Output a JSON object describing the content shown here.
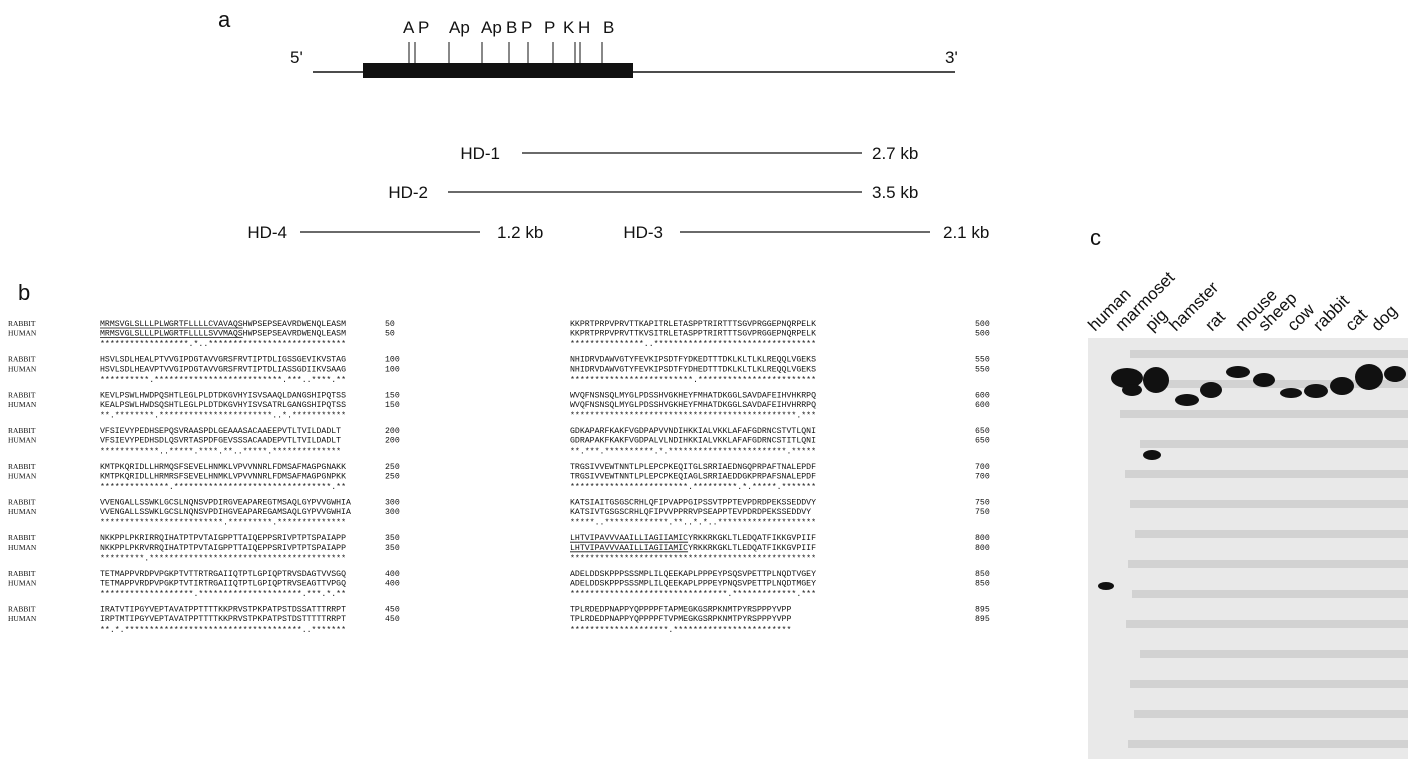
{
  "panel_a": {
    "label": "a",
    "five_prime": "5'",
    "three_prime": "3'",
    "sites": [
      "A",
      "P",
      "Ap",
      "Ap",
      "B",
      "P",
      "P",
      "K",
      "H",
      "B"
    ],
    "clones": [
      {
        "name": "HD-1",
        "size": "2.7 kb"
      },
      {
        "name": "HD-2",
        "size": "3.5 kb"
      },
      {
        "name": "HD-4",
        "size": "1.2 kb"
      },
      {
        "name": "HD-3",
        "size": "2.1 kb"
      }
    ]
  },
  "panel_b": {
    "label": "b",
    "species": [
      "RABBIT",
      "HUMAN"
    ],
    "left_blocks": [
      {
        "rabbit": "MRMSVGLSLLLPLWGRTFLLLLCVAVAQSHWPSEPSEAVRDWENQLEASM",
        "human": "MRMSVGLSLLLPLWGRTFLLLLSVVMAQSHWPSEPSEAVRDWENQLEASM",
        "conservation": "******************.*..****************************",
        "end": 50,
        "underline": 29
      },
      {
        "rabbit": "HSVLSDLHEALPTVVGIPDGTAVVGRSFRVTIPTDLIGSSGEVIKVSTAG",
        "human": "HSVLSDLHEAVPTVVGIPDGTAVVGRSFRVTIPTDLIASSGDIIKVSAAG",
        "conservation": "**********.**************************.***..****.**",
        "end": 100
      },
      {
        "rabbit": "KEVLPSWLHWDPQSHTLEGLPLDTDKGVHYISVSAAQLDANGSHIPQTSS",
        "human": "KEALPSWLHWDSQSHTLEGLPLDTDKGVHYISVSATRLGANGSHIPQTSS",
        "conservation": "**.********.***********************..*.***********",
        "end": 150
      },
      {
        "rabbit": "VFSIEVYPEDHSEPQSVRAASPDLGEAAASACAAEEPVTLTVILDADLT",
        "human": "VFSIEVYPEDHSDLQSVRTASPDFGEVSSSACAADEPVTLTVILDADLT",
        "conservation": "************..*****.****.**..*****.**************",
        "end": 200
      },
      {
        "rabbit": "KMTPKQRIDLLHRMQSFSEVELHNMKLVPVVNNRLFDMSAFMAGPGNAKK",
        "human": "KMTPKQRIDLLHRMRSFSEVELHNMKLVPVVNNRLFDMSAFMAGPGNPKK",
        "conservation": "**************.********************************.**",
        "end": 250
      },
      {
        "rabbit": "VVENGALLSSWKLGCSLNQNSVPDIRGVEAPAREGTMSAQLGYPVVGWHIA",
        "human": "VVENGALLSSWKLGCSLNQNSVPDIHGVEAPAREGAMSAQLGYPVVGWHIA",
        "conservation": "*************************.*********.**************",
        "end": 300
      },
      {
        "rabbit": "NKKPPLPKRIRRQIHATPTPVTAIGPPTTAIQEPPSRIVPTPTSPAIAPP",
        "human": "NKKPPLPKRVRRQIHATPTPVTAIGPPTTAIQEPPSRIVPTPTSPAIAPP",
        "conservation": "*********.****************************************",
        "end": 350
      },
      {
        "rabbit": "TETMAPPVRDPVPGKPTVTTRTRGAIIQTPTLGPIQPTRVSDAGTVVSGQ",
        "human": "TETMAPPVRDPVPGKPTVTIRTRGAIIQTPTLGPIQPTRVSEAGTTVPGQ",
        "conservation": "*******************.*********************.***.*.**",
        "end": 400
      },
      {
        "rabbit": "IRATVTIPGYVEPTAVATPPTTTTKKPRVSTPKPATPSTDSSATTTRRPT",
        "human": "IRPTMTIPGYVEPTAVATPPTTTTKKPRVSTPKPATPSTDSTTTTTRRPT",
        "conservation": "**.*.************************************..*******",
        "end": 450
      }
    ],
    "right_blocks": [
      {
        "rabbit": "KKPRTPRPVPRVTTKAPITRLETASPPTRIRTTTSGVPRGGEPNQRPELK",
        "human": "KKPRTPRPVPRVTTKVSITRLETASPPTRIRTTTSGVPRGGEPNQRPELK",
        "conservation": "***************..*********************************",
        "end": 500
      },
      {
        "rabbit": "NHIDRVDAWVGTYFEVKIPSDTFYDKEDTTTDKLKLTLKLREQQLVGEKS",
        "human": "NHIDRVDAWVGTYFEVKIPSDTFYDHEDTTTDKLKLTLKLREQQLVGEKS",
        "conservation": "*************************.************************",
        "end": 550
      },
      {
        "rabbit": "WVQFNSNSQLMYGLPDSSHVGKHEYFMHATDKGGLSAVDAFEIHVHKRPQ",
        "human": "WVQFNSNSQLMYGLPDSSHVGKHEYFMHATDKGGLSAVDAFEIHVHRRPQ",
        "conservation": "**********************************************.***",
        "end": 600
      },
      {
        "rabbit": "GDKAPARFKAKFVGDPAPVVNDIHKKIALVKKLAFAFGDRNCSTVTLQNI",
        "human": "GDRAPAKFKAKFVGDPALVLNDIHKKIALVKKLAFAFGDRNCSTITLQNI",
        "conservation": "**.***.**********.*.************************.*****",
        "end": 650
      },
      {
        "rabbit": "TRGSIVVEWTNNTLPLEPCPKEQITGLSRRIAEDNGQPRPAFTNALEPDF",
        "human": "TRGSIVVEWTNNTLPLEPCPKEQIAGLSRRIAEDDGKPRPAFSNALEPDF",
        "conservation": "************************.*********.*.*****.*******",
        "end": 700
      },
      {
        "rabbit": "KATSIAITGSGSCRHLQFIPVAPPGIPSSVTPPTEVPDRDPEKSSEDDVY",
        "human": "KATSIVTGSGSCRHLQFIPVVPPRRVPSEAPPTEVPDRDPEKSSEDDVY",
        "conservation": "*****..*************.**..*.*..********************",
        "end": 750
      },
      {
        "rabbit": "LHTVIPAVVVAAILLIAGIIAMICYRKKRKGKLTLEDQATFIKKGVPIIF",
        "human": "LHTVIPAVVVAAILLIAGIIAMICYRKKRKGKLTLEDQATFIKKGVPIIF",
        "conservation": "**************************************************",
        "end": 800,
        "underline": 24
      },
      {
        "rabbit": "ADELDDSKPPPSSSMPLILQEEKAPLPPPEYPSQSVPETTPLNQDTVGEY",
        "human": "ADELDDSKPPPSSSMPLILQEEKAPLPPPEYPNQSVPETTPLNQDTMGEY",
        "conservation": "********************************.*************.***",
        "end": 850
      },
      {
        "rabbit": "TPLRDEDPNAPPYQPPPPFTAPMEGKGSRPKNMTPYRSPPPYVPP",
        "human": "TPLRDEDPNAPPYQPPPPFTVPMEGKGSRPKNMTPYRSPPPYVPP",
        "conservation": "********************.************************",
        "end": 895
      }
    ]
  },
  "panel_c": {
    "label": "c",
    "lanes": [
      "human",
      "marmoset",
      "pig",
      "hamster",
      "rat",
      "mouse",
      "sheep",
      "cow",
      "rabbit",
      "cat",
      "dog"
    ]
  }
}
